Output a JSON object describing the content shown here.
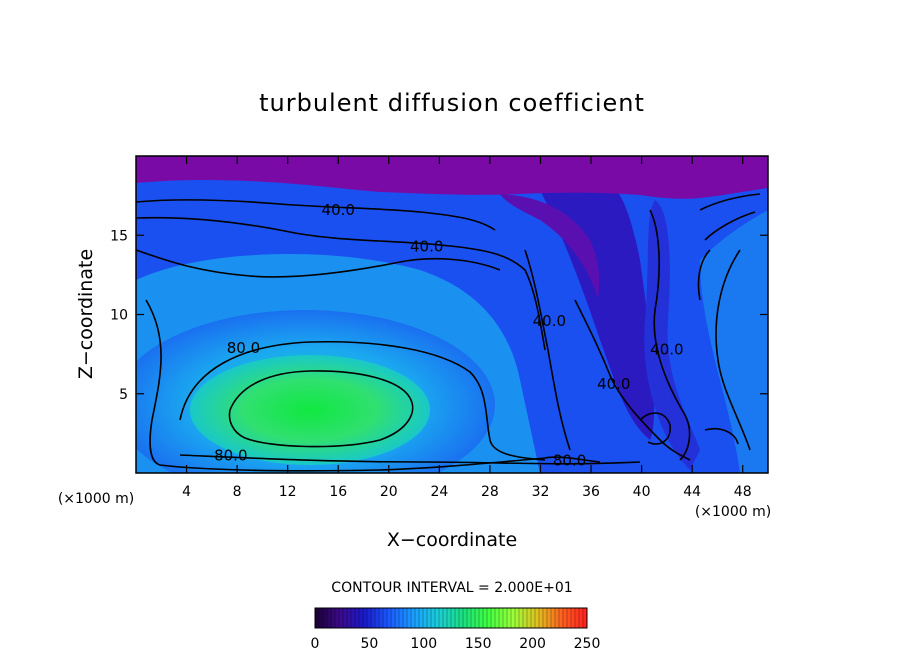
{
  "chart_data": {
    "type": "heatmap",
    "title": "turbulent diffusion coefficient",
    "xlabel": "X−coordinate",
    "ylabel": "Z−coordinate",
    "x_unit_left": "(×1000 m)",
    "x_unit_right": "(×1000 m)",
    "xlim": [
      0,
      50
    ],
    "ylim": [
      0,
      20
    ],
    "x_ticks": [
      4,
      8,
      12,
      16,
      20,
      24,
      28,
      32,
      36,
      40,
      44,
      48
    ],
    "y_ticks": [
      5,
      10,
      15
    ],
    "contour_interval_text": "CONTOUR INTERVAL = 2.000E+01",
    "contour_labels": [
      {
        "text": "40.0",
        "x": 16,
        "z": 16.6
      },
      {
        "text": "40.0",
        "x": 23,
        "z": 14.3
      },
      {
        "text": "40.0",
        "x": 32.7,
        "z": 9.6
      },
      {
        "text": "40.0",
        "x": 37.8,
        "z": 5.6
      },
      {
        "text": "40.0",
        "x": 42,
        "z": 7.8
      },
      {
        "text": "80.0",
        "x": 8.5,
        "z": 7.9
      },
      {
        "text": "80.0",
        "x": 7.5,
        "z": 1.1
      },
      {
        "text": "80.0",
        "x": 34.3,
        "z": 0.8
      }
    ],
    "colorbar": {
      "min": 0,
      "max": 250,
      "ticks": [
        0,
        50,
        100,
        150,
        200,
        250
      ],
      "colors": [
        "#1a0033",
        "#3b0a8a",
        "#1a1acc",
        "#1a5aff",
        "#1a9fff",
        "#1acfd6",
        "#1ae080",
        "#40ff40",
        "#9aff3a",
        "#e0c020",
        "#ff6020",
        "#ff2020"
      ]
    },
    "field_colors": {
      "top_layer": "#7a0aa6",
      "low": "#1a28e8",
      "mid": "#1a8cf0",
      "high": "#1ae6a0",
      "peak": "#10e840"
    }
  }
}
